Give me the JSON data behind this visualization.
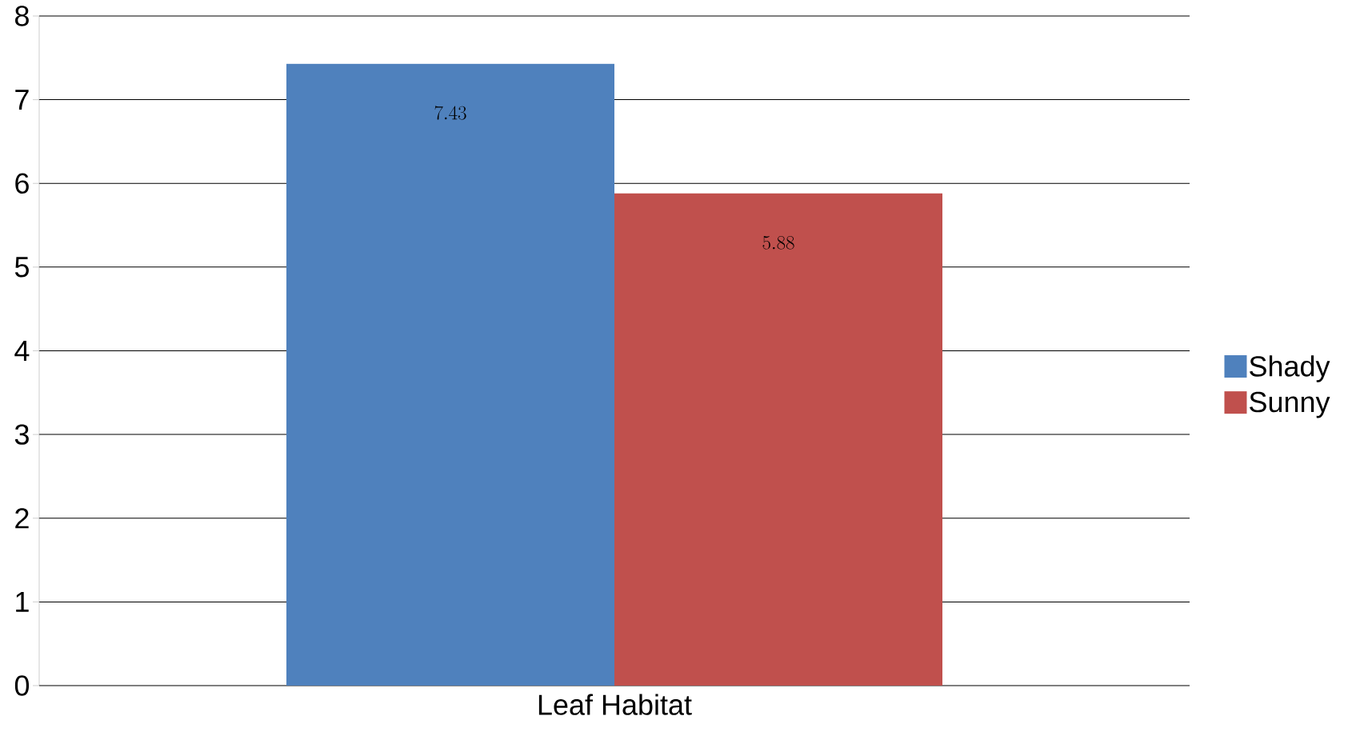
{
  "chart_data": {
    "type": "bar",
    "xlabel": "Leaf Habitat",
    "categories": [
      null
    ],
    "series": [
      {
        "name": "Shady",
        "color": "#4f81bd",
        "values": [
          7.43
        ]
      },
      {
        "name": "Sunny",
        "color": "#c0504d",
        "values": [
          5.88
        ]
      }
    ],
    "ylim": [
      0,
      8
    ],
    "yticks": [
      0,
      1,
      2,
      3,
      4,
      5,
      6,
      7,
      8
    ],
    "grid": "y",
    "legend": "right",
    "data_labels": true
  }
}
